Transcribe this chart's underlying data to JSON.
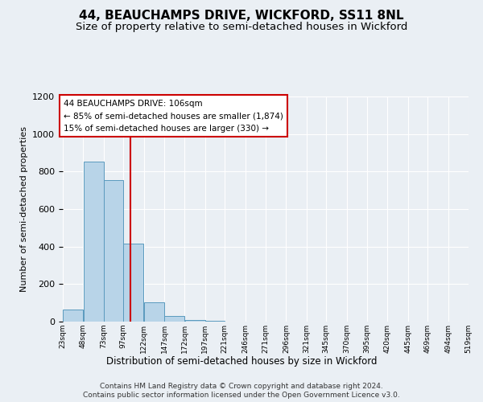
{
  "title": "44, BEAUCHAMPS DRIVE, WICKFORD, SS11 8NL",
  "subtitle": "Size of property relative to semi-detached houses in Wickford",
  "xlabel": "Distribution of semi-detached houses by size in Wickford",
  "ylabel": "Number of semi-detached properties",
  "bin_labels": [
    "23sqm",
    "48sqm",
    "73sqm",
    "97sqm",
    "122sqm",
    "147sqm",
    "172sqm",
    "197sqm",
    "221sqm",
    "246sqm",
    "271sqm",
    "296sqm",
    "321sqm",
    "345sqm",
    "370sqm",
    "395sqm",
    "420sqm",
    "445sqm",
    "469sqm",
    "494sqm",
    "519sqm"
  ],
  "bin_edges": [
    23,
    48,
    73,
    97,
    122,
    147,
    172,
    197,
    221,
    246,
    271,
    296,
    321,
    345,
    370,
    395,
    420,
    445,
    469,
    494,
    519
  ],
  "bar_values": [
    65,
    855,
    755,
    415,
    105,
    30,
    10,
    3,
    0,
    0,
    0,
    0,
    0,
    0,
    0,
    0,
    0,
    0,
    0,
    0
  ],
  "bar_color": "#b8d4e8",
  "bar_edge_color": "#5a9abe",
  "property_size": 106,
  "red_line_color": "#cc0000",
  "annotation_text1": "44 BEAUCHAMPS DRIVE: 106sqm",
  "annotation_text2": "← 85% of semi-detached houses are smaller (1,874)",
  "annotation_text3": "15% of semi-detached houses are larger (330) →",
  "annotation_box_edge": "#cc0000",
  "ylim": [
    0,
    1200
  ],
  "yticks": [
    0,
    200,
    400,
    600,
    800,
    1000,
    1200
  ],
  "background_color": "#eaeff4",
  "plot_background": "#eaeff4",
  "footer_line1": "Contains HM Land Registry data © Crown copyright and database right 2024.",
  "footer_line2": "Contains public sector information licensed under the Open Government Licence v3.0.",
  "title_fontsize": 11,
  "subtitle_fontsize": 9.5
}
